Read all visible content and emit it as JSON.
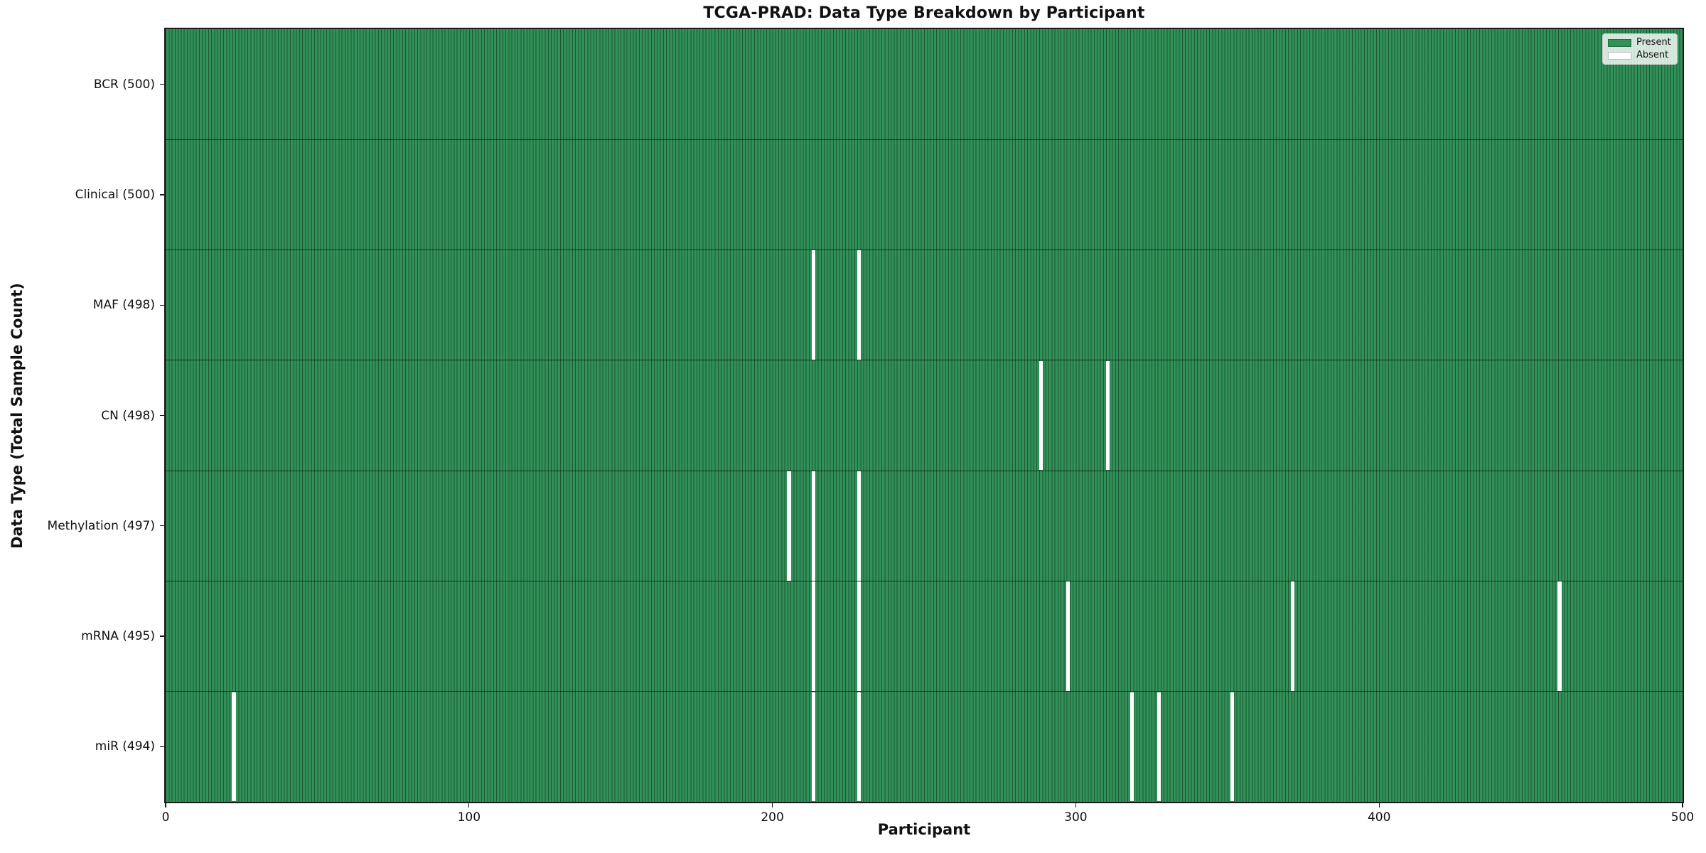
{
  "title": "TCGA-PRAD: Data Type Breakdown by Participant",
  "colors": {
    "present": "#319158",
    "absent": "#ffffff",
    "bar_edge": "#00000066",
    "spine": "#1b1b1b"
  },
  "legend": {
    "present_label": "Present",
    "absent_label": "Absent",
    "position": "upper right"
  },
  "chart_data": {
    "type": "heatmap",
    "title": "TCGA-PRAD: Data Type Breakdown by Participant",
    "xlabel": "Participant",
    "ylabel": "Data Type (Total Sample Count)",
    "xlim": [
      0,
      500
    ],
    "x_ticks": [
      0,
      100,
      200,
      300,
      400,
      500
    ],
    "n_participants": 500,
    "grid": false,
    "legend_entries": [
      "Present",
      "Absent"
    ],
    "legend_position": "upper right",
    "rows": [
      {
        "label": "BCR (500)",
        "total": 500,
        "absent_participants": []
      },
      {
        "label": "Clinical (500)",
        "total": 500,
        "absent_participants": []
      },
      {
        "label": "MAF (498)",
        "total": 498,
        "absent_participants": [
          213,
          228
        ]
      },
      {
        "label": "CN (498)",
        "total": 498,
        "absent_participants": [
          288,
          310
        ]
      },
      {
        "label": "Methylation (497)",
        "total": 497,
        "absent_participants": [
          205,
          213,
          228
        ]
      },
      {
        "label": "mRNA (495)",
        "total": 495,
        "absent_participants": [
          213,
          228,
          297,
          371,
          459
        ]
      },
      {
        "label": "miR (494)",
        "total": 494,
        "absent_participants": [
          22,
          213,
          228,
          318,
          327,
          351
        ]
      }
    ]
  }
}
